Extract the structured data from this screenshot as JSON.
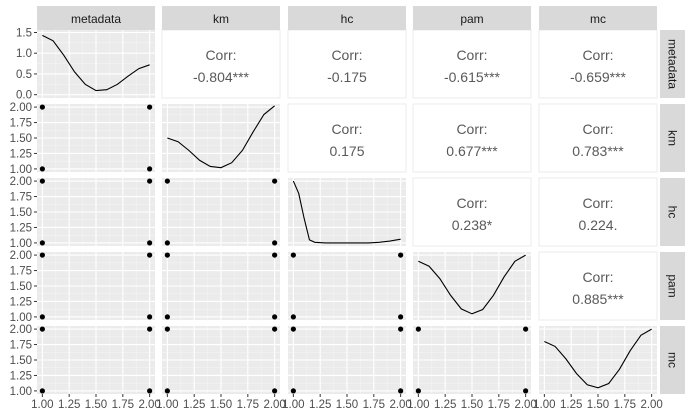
{
  "chart_data": {
    "type": "scatter",
    "variables": [
      "metadata",
      "km",
      "hc",
      "pam",
      "mc"
    ],
    "x_ticks": [
      "1.00",
      "1.25",
      "1.50",
      "1.75",
      "2.00"
    ],
    "y_ticks_density_first": [
      "0.0",
      "0.5",
      "1.0",
      "1.5"
    ],
    "y_ticks": [
      "1.00",
      "1.25",
      "1.50",
      "1.75",
      "2.00"
    ],
    "xlim": [
      0.95,
      2.05
    ],
    "ylim": [
      0.95,
      2.05
    ],
    "density_ylim_first": [
      -0.08,
      1.56
    ],
    "correlations": [
      {
        "row": "metadata",
        "col": "km",
        "label": "Corr:",
        "value": "-0.804***"
      },
      {
        "row": "metadata",
        "col": "hc",
        "label": "Corr:",
        "value": "-0.175"
      },
      {
        "row": "metadata",
        "col": "pam",
        "label": "Corr:",
        "value": "-0.615***"
      },
      {
        "row": "metadata",
        "col": "mc",
        "label": "Corr:",
        "value": "-0.659***"
      },
      {
        "row": "km",
        "col": "hc",
        "label": "Corr:",
        "value": "0.175"
      },
      {
        "row": "km",
        "col": "pam",
        "label": "Corr:",
        "value": "0.677***"
      },
      {
        "row": "km",
        "col": "mc",
        "label": "Corr:",
        "value": "0.783***"
      },
      {
        "row": "hc",
        "col": "pam",
        "label": "Corr:",
        "value": "0.238*"
      },
      {
        "row": "hc",
        "col": "mc",
        "label": "Corr:",
        "value": "0.224."
      },
      {
        "row": "pam",
        "col": "mc",
        "label": "Corr:",
        "value": "0.885***"
      }
    ],
    "densities": {
      "metadata": {
        "x": [
          1.0,
          1.1,
          1.2,
          1.3,
          1.4,
          1.5,
          1.6,
          1.7,
          1.8,
          1.9,
          2.0
        ],
        "y": [
          1.43,
          1.3,
          0.95,
          0.55,
          0.25,
          0.1,
          0.12,
          0.25,
          0.45,
          0.63,
          0.72
        ]
      },
      "km": {
        "x": [
          1.0,
          1.1,
          1.2,
          1.3,
          1.4,
          1.5,
          1.6,
          1.7,
          1.8,
          1.9,
          2.0
        ],
        "y": [
          1.5,
          1.44,
          1.3,
          1.14,
          1.04,
          1.02,
          1.1,
          1.3,
          1.6,
          1.88,
          2.02
        ]
      },
      "hc": {
        "x": [
          1.0,
          1.05,
          1.1,
          1.15,
          1.2,
          1.3,
          1.4,
          1.5,
          1.6,
          1.7,
          1.8,
          1.9,
          2.0
        ],
        "y": [
          2.0,
          1.8,
          1.4,
          1.05,
          1.01,
          1.0,
          1.0,
          1.0,
          1.0,
          1.0,
          1.01,
          1.03,
          1.06
        ]
      },
      "pam": {
        "x": [
          1.0,
          1.1,
          1.2,
          1.3,
          1.4,
          1.5,
          1.6,
          1.7,
          1.8,
          1.9,
          2.0
        ],
        "y": [
          1.9,
          1.82,
          1.62,
          1.35,
          1.13,
          1.05,
          1.12,
          1.35,
          1.65,
          1.9,
          2.0
        ]
      },
      "mc": {
        "x": [
          1.0,
          1.1,
          1.2,
          1.3,
          1.4,
          1.5,
          1.6,
          1.7,
          1.8,
          1.9,
          2.0
        ],
        "y": [
          1.8,
          1.72,
          1.52,
          1.28,
          1.1,
          1.05,
          1.12,
          1.35,
          1.65,
          1.9,
          2.0
        ]
      }
    },
    "scatter_points": [
      [
        1,
        1
      ],
      [
        1,
        2
      ],
      [
        2,
        1
      ],
      [
        2,
        2
      ]
    ],
    "grid": true
  }
}
